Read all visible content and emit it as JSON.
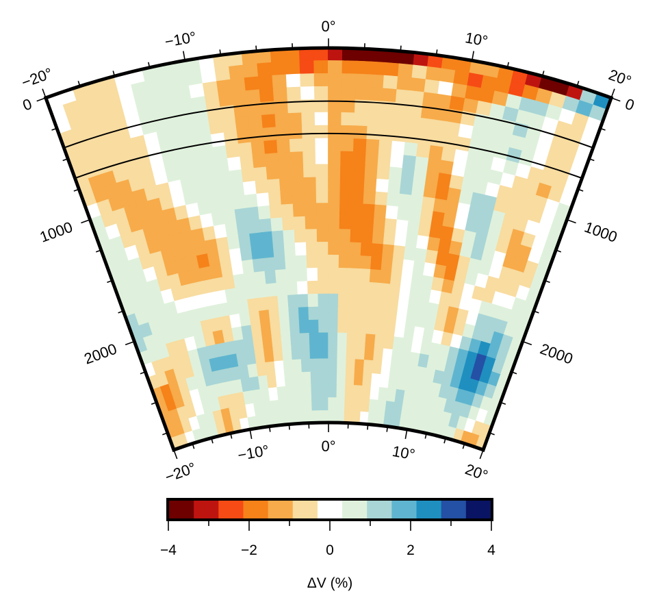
{
  "chart_data": {
    "type": "heatmap",
    "projection": "polar-sector (cross-section)",
    "title": "",
    "x_axis": {
      "label": "",
      "quantity": "angular distance (degrees)",
      "range": [
        -20,
        20
      ],
      "major_ticks": [
        -20,
        -10,
        0,
        10,
        20
      ],
      "tick_labels_top": [
        "−20°",
        "−10°",
        "0°",
        "10°",
        "20°"
      ],
      "tick_labels_bottom": [
        "−20°",
        "−10°",
        "0°",
        "10°",
        "20°"
      ],
      "minor_tick_step": 2.5
    },
    "y_axis": {
      "label": "",
      "quantity": "depth (km)",
      "range": [
        0,
        2890
      ],
      "major_ticks": [
        0,
        1000,
        2000
      ],
      "tick_labels_left": [
        "0",
        "1000",
        "2000"
      ],
      "tick_labels_right": [
        "0",
        "1000",
        "2000"
      ],
      "minor_tick_step": 250
    },
    "reference_lines_depth_km": [
      410,
      660
    ],
    "colorbar": {
      "label": "ΔV (%)",
      "range": [
        -4,
        4
      ],
      "tick_values": [
        -4,
        -3,
        -2,
        -1,
        0,
        1,
        2,
        3,
        4
      ],
      "tick_labels": [
        "−4",
        "",
        "−2",
        "",
        "0",
        "",
        "2",
        "",
        "4"
      ],
      "bins": 13,
      "colors": [
        "#6e0000",
        "#be1410",
        "#f64b14",
        "#f6821a",
        "#f7ab4a",
        "#f8dca0",
        "#ffffff",
        "#dff1dc",
        "#a9d5d6",
        "#5fb5cf",
        "#1f8fc0",
        "#2450a5",
        "#0a1464"
      ]
    },
    "grid": {
      "angle_start": -20,
      "angle_step": 1,
      "n_cols": 40,
      "depth_start": 0,
      "depth_step": 100,
      "depth_max": 2890,
      "n_rows": 29,
      "encoding": "color-bin index 0..12 (0 = −4% darkest red, 6 = ~0% white, 12 = +4% darkest blue)",
      "rows": [
        [
          6,
          6,
          5,
          5,
          5,
          6,
          6,
          7,
          7,
          7,
          7,
          6,
          5,
          5,
          4,
          4,
          3,
          3,
          2,
          2,
          1,
          0,
          0,
          0,
          0,
          0,
          1,
          2,
          3,
          3,
          4,
          4,
          3,
          2,
          1,
          0,
          0,
          1,
          8,
          10
        ],
        [
          6,
          5,
          5,
          5,
          5,
          6,
          7,
          7,
          7,
          7,
          7,
          6,
          5,
          4,
          4,
          3,
          3,
          3,
          2,
          3,
          4,
          3,
          3,
          3,
          3,
          4,
          5,
          4,
          4,
          3,
          2,
          3,
          3,
          2,
          3,
          4,
          5,
          8,
          9,
          8
        ],
        [
          6,
          5,
          5,
          5,
          5,
          6,
          7,
          7,
          7,
          7,
          6,
          5,
          4,
          4,
          3,
          3,
          4,
          6,
          5,
          4,
          4,
          4,
          4,
          4,
          5,
          4,
          4,
          5,
          6,
          4,
          3,
          3,
          4,
          7,
          8,
          8,
          7,
          6,
          5,
          6
        ],
        [
          5,
          5,
          5,
          5,
          5,
          6,
          7,
          7,
          7,
          7,
          7,
          5,
          4,
          4,
          4,
          3,
          4,
          5,
          6,
          5,
          4,
          4,
          4,
          4,
          4,
          5,
          5,
          4,
          4,
          3,
          4,
          5,
          7,
          8,
          7,
          7,
          6,
          5,
          5,
          6
        ],
        [
          5,
          5,
          5,
          5,
          5,
          6,
          7,
          7,
          7,
          7,
          7,
          5,
          5,
          4,
          4,
          4,
          4,
          5,
          5,
          5,
          4,
          4,
          5,
          5,
          5,
          5,
          5,
          4,
          4,
          4,
          5,
          7,
          7,
          7,
          8,
          7,
          6,
          5,
          5,
          6
        ],
        [
          5,
          5,
          5,
          5,
          5,
          5,
          6,
          7,
          7,
          7,
          7,
          5,
          5,
          4,
          4,
          3,
          4,
          4,
          5,
          6,
          4,
          5,
          5,
          5,
          5,
          5,
          5,
          5,
          5,
          5,
          6,
          7,
          7,
          7,
          7,
          7,
          6,
          5,
          5,
          6
        ],
        [
          5,
          5,
          5,
          5,
          5,
          5,
          6,
          7,
          7,
          7,
          7,
          6,
          5,
          4,
          4,
          4,
          4,
          4,
          5,
          5,
          4,
          4,
          4,
          5,
          5,
          5,
          5,
          5,
          5,
          5,
          5,
          7,
          7,
          7,
          8,
          7,
          6,
          5,
          5,
          6
        ],
        [
          5,
          4,
          4,
          5,
          5,
          5,
          6,
          7,
          7,
          7,
          7,
          7,
          5,
          5,
          4,
          3,
          4,
          5,
          5,
          6,
          4,
          4,
          3,
          4,
          5,
          6,
          7,
          5,
          4,
          5,
          6,
          7,
          7,
          6,
          7,
          6,
          5,
          5,
          5,
          6
        ],
        [
          5,
          4,
          4,
          4,
          5,
          5,
          6,
          7,
          7,
          7,
          7,
          7,
          6,
          5,
          4,
          4,
          4,
          4,
          5,
          6,
          4,
          3,
          3,
          4,
          5,
          6,
          8,
          7,
          4,
          4,
          6,
          7,
          7,
          7,
          6,
          5,
          5,
          4,
          5,
          6
        ],
        [
          6,
          5,
          4,
          4,
          4,
          5,
          5,
          6,
          7,
          7,
          7,
          7,
          7,
          5,
          5,
          4,
          4,
          4,
          5,
          5,
          4,
          3,
          3,
          4,
          5,
          7,
          8,
          7,
          4,
          3,
          5,
          7,
          7,
          6,
          5,
          5,
          5,
          5,
          6,
          7
        ],
        [
          7,
          5,
          5,
          4,
          4,
          4,
          5,
          6,
          7,
          7,
          7,
          7,
          7,
          6,
          5,
          5,
          4,
          4,
          4,
          5,
          4,
          3,
          3,
          4,
          6,
          7,
          8,
          7,
          4,
          3,
          4,
          7,
          8,
          8,
          5,
          5,
          5,
          5,
          6,
          7
        ],
        [
          7,
          6,
          5,
          4,
          4,
          4,
          4,
          5,
          6,
          7,
          7,
          7,
          7,
          7,
          6,
          5,
          4,
          4,
          4,
          5,
          4,
          3,
          3,
          4,
          5,
          7,
          7,
          7,
          5,
          4,
          4,
          6,
          8,
          8,
          7,
          5,
          5,
          6,
          6,
          7
        ],
        [
          7,
          7,
          5,
          5,
          4,
          4,
          4,
          4,
          5,
          6,
          7,
          7,
          8,
          8,
          7,
          5,
          5,
          4,
          4,
          4,
          4,
          3,
          3,
          3,
          4,
          6,
          7,
          7,
          5,
          3,
          4,
          6,
          8,
          8,
          7,
          5,
          4,
          5,
          6,
          7
        ],
        [
          7,
          7,
          6,
          5,
          4,
          4,
          4,
          4,
          4,
          5,
          6,
          7,
          8,
          8,
          8,
          7,
          5,
          5,
          4,
          4,
          4,
          3,
          3,
          3,
          4,
          5,
          6,
          7,
          5,
          3,
          3,
          5,
          7,
          8,
          7,
          5,
          4,
          4,
          6,
          7
        ],
        [
          7,
          7,
          7,
          5,
          5,
          4,
          4,
          4,
          4,
          4,
          5,
          7,
          8,
          9,
          9,
          8,
          7,
          5,
          5,
          4,
          4,
          4,
          3,
          3,
          4,
          5,
          6,
          7,
          6,
          4,
          3,
          4,
          7,
          8,
          7,
          6,
          4,
          4,
          5,
          7
        ],
        [
          7,
          7,
          7,
          6,
          5,
          4,
          4,
          4,
          3,
          4,
          5,
          6,
          8,
          9,
          9,
          8,
          7,
          6,
          5,
          5,
          4,
          4,
          4,
          3,
          3,
          4,
          5,
          7,
          7,
          5,
          3,
          3,
          5,
          7,
          7,
          6,
          5,
          5,
          5,
          7
        ],
        [
          7,
          7,
          7,
          7,
          5,
          5,
          4,
          4,
          4,
          4,
          5,
          6,
          7,
          8,
          8,
          8,
          7,
          7,
          5,
          5,
          5,
          4,
          4,
          4,
          3,
          4,
          5,
          6,
          7,
          6,
          4,
          3,
          5,
          7,
          6,
          5,
          5,
          5,
          6,
          7
        ],
        [
          7,
          7,
          7,
          7,
          6,
          5,
          5,
          5,
          5,
          5,
          5,
          7,
          7,
          7,
          8,
          7,
          7,
          7,
          6,
          5,
          5,
          5,
          5,
          5,
          4,
          4,
          5,
          6,
          7,
          7,
          5,
          4,
          5,
          6,
          5,
          5,
          6,
          6,
          7,
          7
        ],
        [
          8,
          7,
          7,
          7,
          7,
          6,
          6,
          6,
          6,
          6,
          7,
          7,
          7,
          7,
          7,
          7,
          7,
          6,
          5,
          5,
          5,
          5,
          5,
          5,
          5,
          5,
          5,
          6,
          7,
          7,
          6,
          5,
          5,
          6,
          6,
          7,
          7,
          7,
          7,
          7
        ],
        [
          8,
          8,
          7,
          7,
          7,
          7,
          7,
          7,
          7,
          7,
          7,
          7,
          5,
          5,
          5,
          7,
          8,
          8,
          7,
          8,
          8,
          5,
          5,
          5,
          5,
          5,
          5,
          6,
          7,
          7,
          7,
          5,
          4,
          5,
          6,
          8,
          8,
          8,
          7,
          7
        ],
        [
          8,
          7,
          7,
          7,
          7,
          7,
          7,
          5,
          5,
          5,
          6,
          7,
          5,
          4,
          5,
          7,
          8,
          9,
          8,
          8,
          8,
          5,
          5,
          5,
          5,
          5,
          5,
          6,
          7,
          7,
          7,
          5,
          4,
          5,
          7,
          8,
          8,
          9,
          8,
          7
        ],
        [
          7,
          7,
          7,
          5,
          5,
          6,
          7,
          5,
          4,
          5,
          7,
          8,
          5,
          4,
          5,
          7,
          8,
          9,
          9,
          8,
          8,
          5,
          5,
          5,
          5,
          5,
          5,
          6,
          7,
          6,
          7,
          6,
          5,
          6,
          8,
          9,
          10,
          9,
          8,
          7
        ],
        [
          6,
          5,
          5,
          5,
          5,
          7,
          8,
          8,
          8,
          8,
          8,
          8,
          5,
          4,
          5,
          7,
          8,
          8,
          9,
          9,
          8,
          7,
          5,
          5,
          4,
          5,
          5,
          7,
          7,
          6,
          7,
          7,
          7,
          8,
          9,
          10,
          11,
          10,
          8,
          7
        ],
        [
          5,
          5,
          4,
          5,
          5,
          7,
          8,
          9,
          9,
          9,
          8,
          8,
          5,
          4,
          5,
          7,
          8,
          8,
          9,
          9,
          8,
          7,
          5,
          5,
          4,
          5,
          6,
          7,
          7,
          7,
          8,
          7,
          7,
          8,
          9,
          10,
          11,
          10,
          9,
          7
        ],
        [
          4,
          3,
          4,
          5,
          7,
          7,
          8,
          8,
          8,
          8,
          8,
          7,
          5,
          5,
          6,
          7,
          7,
          8,
          8,
          8,
          8,
          7,
          5,
          4,
          5,
          5,
          6,
          7,
          7,
          7,
          7,
          7,
          8,
          8,
          9,
          10,
          10,
          9,
          8,
          7
        ],
        [
          4,
          3,
          4,
          5,
          6,
          7,
          7,
          7,
          7,
          7,
          8,
          8,
          7,
          5,
          6,
          7,
          7,
          7,
          8,
          8,
          8,
          7,
          5,
          4,
          5,
          6,
          6,
          7,
          7,
          7,
          7,
          7,
          7,
          8,
          8,
          9,
          9,
          8,
          7,
          7
        ],
        [
          4,
          4,
          5,
          5,
          6,
          7,
          7,
          5,
          5,
          5,
          7,
          7,
          7,
          6,
          7,
          7,
          7,
          7,
          8,
          8,
          8,
          7,
          5,
          5,
          5,
          6,
          7,
          7,
          8,
          7,
          7,
          7,
          7,
          7,
          8,
          8,
          8,
          7,
          6,
          7
        ],
        [
          4,
          4,
          5,
          6,
          7,
          7,
          5,
          4,
          5,
          5,
          6,
          7,
          7,
          7,
          7,
          7,
          7,
          7,
          8,
          8,
          7,
          7,
          5,
          5,
          5,
          7,
          7,
          8,
          8,
          7,
          7,
          7,
          7,
          7,
          7,
          8,
          7,
          6,
          5,
          5
        ],
        [
          5,
          5,
          6,
          7,
          7,
          7,
          5,
          4,
          5,
          6,
          7,
          7,
          7,
          7,
          7,
          7,
          7,
          7,
          7,
          7,
          7,
          7,
          5,
          5,
          6,
          7,
          7,
          8,
          8,
          7,
          7,
          7,
          7,
          7,
          7,
          7,
          5,
          4,
          4,
          5
        ]
      ]
    },
    "legend_position": "bottom (horizontal colorbar)"
  }
}
